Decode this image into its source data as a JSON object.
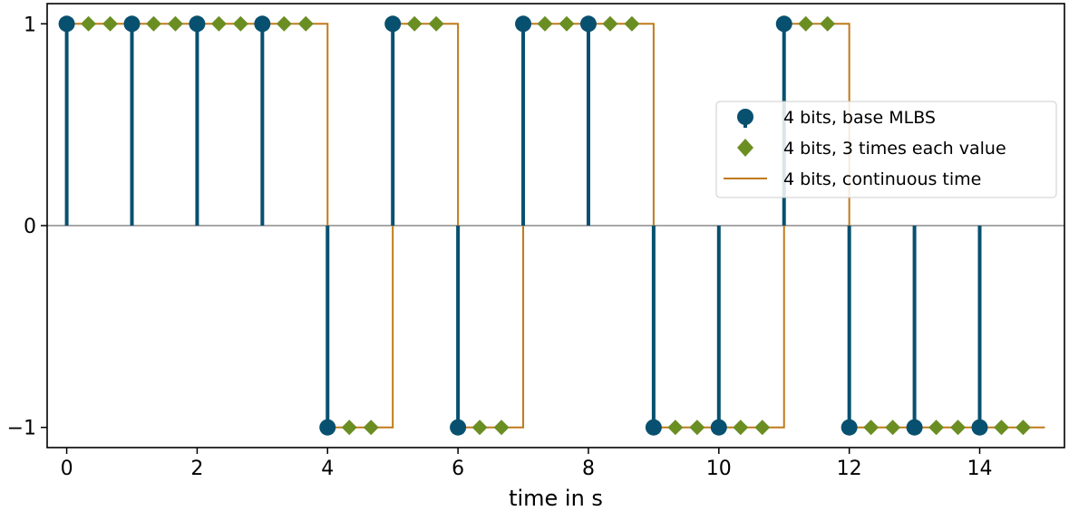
{
  "chart_data": {
    "type": "scatter",
    "title": "",
    "xlabel": "time in s",
    "ylabel": "",
    "xlim": [
      -0.3,
      15.3
    ],
    "ylim": [
      -1.1,
      1.1
    ],
    "x_ticks": [
      0,
      2,
      4,
      6,
      8,
      10,
      12,
      14
    ],
    "x_tick_labels": [
      "0",
      "2",
      "4",
      "6",
      "8",
      "10",
      "12",
      "14"
    ],
    "y_ticks": [
      1,
      0,
      -1
    ],
    "y_tick_labels": [
      "1",
      "0",
      "−1"
    ],
    "grid": false,
    "legend_position": "center-right",
    "colors": {
      "base": "#08506f",
      "repeated": "#6b8e23",
      "continuous": "#c07a1a",
      "baseline": "#a8a8a8"
    },
    "series": [
      {
        "name": "4 bits, base MLBS",
        "kind": "stem",
        "x": [
          0,
          1,
          2,
          3,
          4,
          5,
          6,
          7,
          8,
          9,
          10,
          11,
          12,
          13,
          14
        ],
        "values": [
          1,
          1,
          1,
          1,
          -1,
          1,
          -1,
          1,
          1,
          -1,
          -1,
          1,
          -1,
          -1,
          -1
        ]
      },
      {
        "name": "4 bits, 3 times each value",
        "kind": "diamond-markers",
        "repeat": 3,
        "step": 0.3333333,
        "x0": [
          0,
          1,
          2,
          3,
          4,
          5,
          6,
          7,
          8,
          9,
          10,
          11,
          12,
          13,
          14
        ],
        "values": [
          1,
          1,
          1,
          1,
          -1,
          1,
          -1,
          1,
          1,
          -1,
          -1,
          1,
          -1,
          -1,
          -1
        ]
      },
      {
        "name": "4 bits, continuous time",
        "kind": "step",
        "x": [
          0,
          1,
          2,
          3,
          4,
          5,
          6,
          7,
          8,
          9,
          10,
          11,
          12,
          13,
          14,
          15
        ],
        "values": [
          1,
          1,
          1,
          1,
          -1,
          1,
          -1,
          1,
          1,
          -1,
          -1,
          1,
          -1,
          -1,
          -1,
          -1
        ]
      }
    ]
  }
}
